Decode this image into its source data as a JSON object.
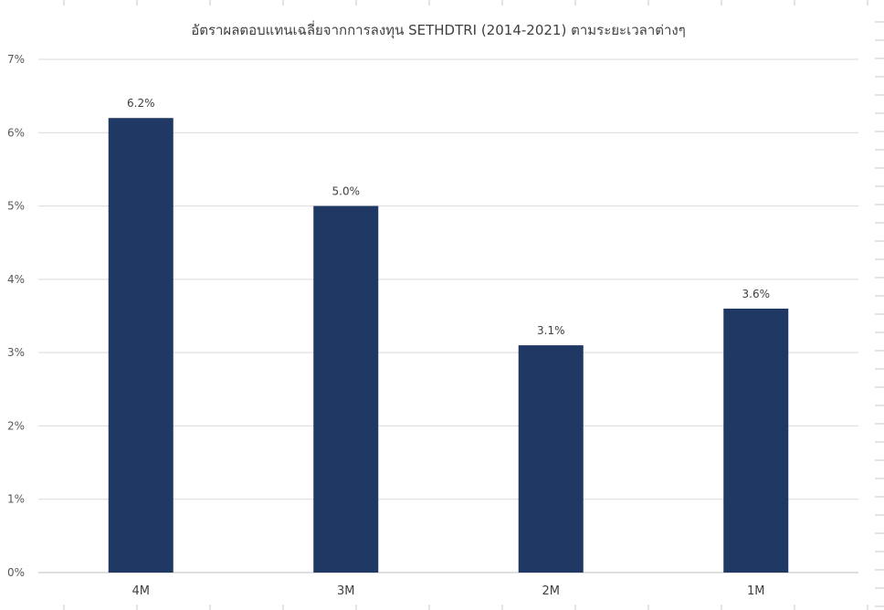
{
  "chart_data": {
    "type": "bar",
    "title": "อัตราผลตอบแทนเฉลี่ยจากการลงทุน SETHDTRI (2014-2021) ตามระยะเวลาต่างๆ",
    "categories": [
      "4M",
      "3M",
      "2M",
      "1M"
    ],
    "values": [
      6.2,
      5.0,
      3.1,
      3.6
    ],
    "data_labels": [
      "6.2%",
      "5.0%",
      "3.1%",
      "3.6%"
    ],
    "y_ticks": [
      "0%",
      "1%",
      "2%",
      "3%",
      "4%",
      "5%",
      "6%",
      "7%"
    ],
    "ylim": [
      0,
      7
    ],
    "grid": true,
    "legend": "none",
    "bar_color": "#1f3864",
    "grid_color": "#d9d9d9"
  }
}
